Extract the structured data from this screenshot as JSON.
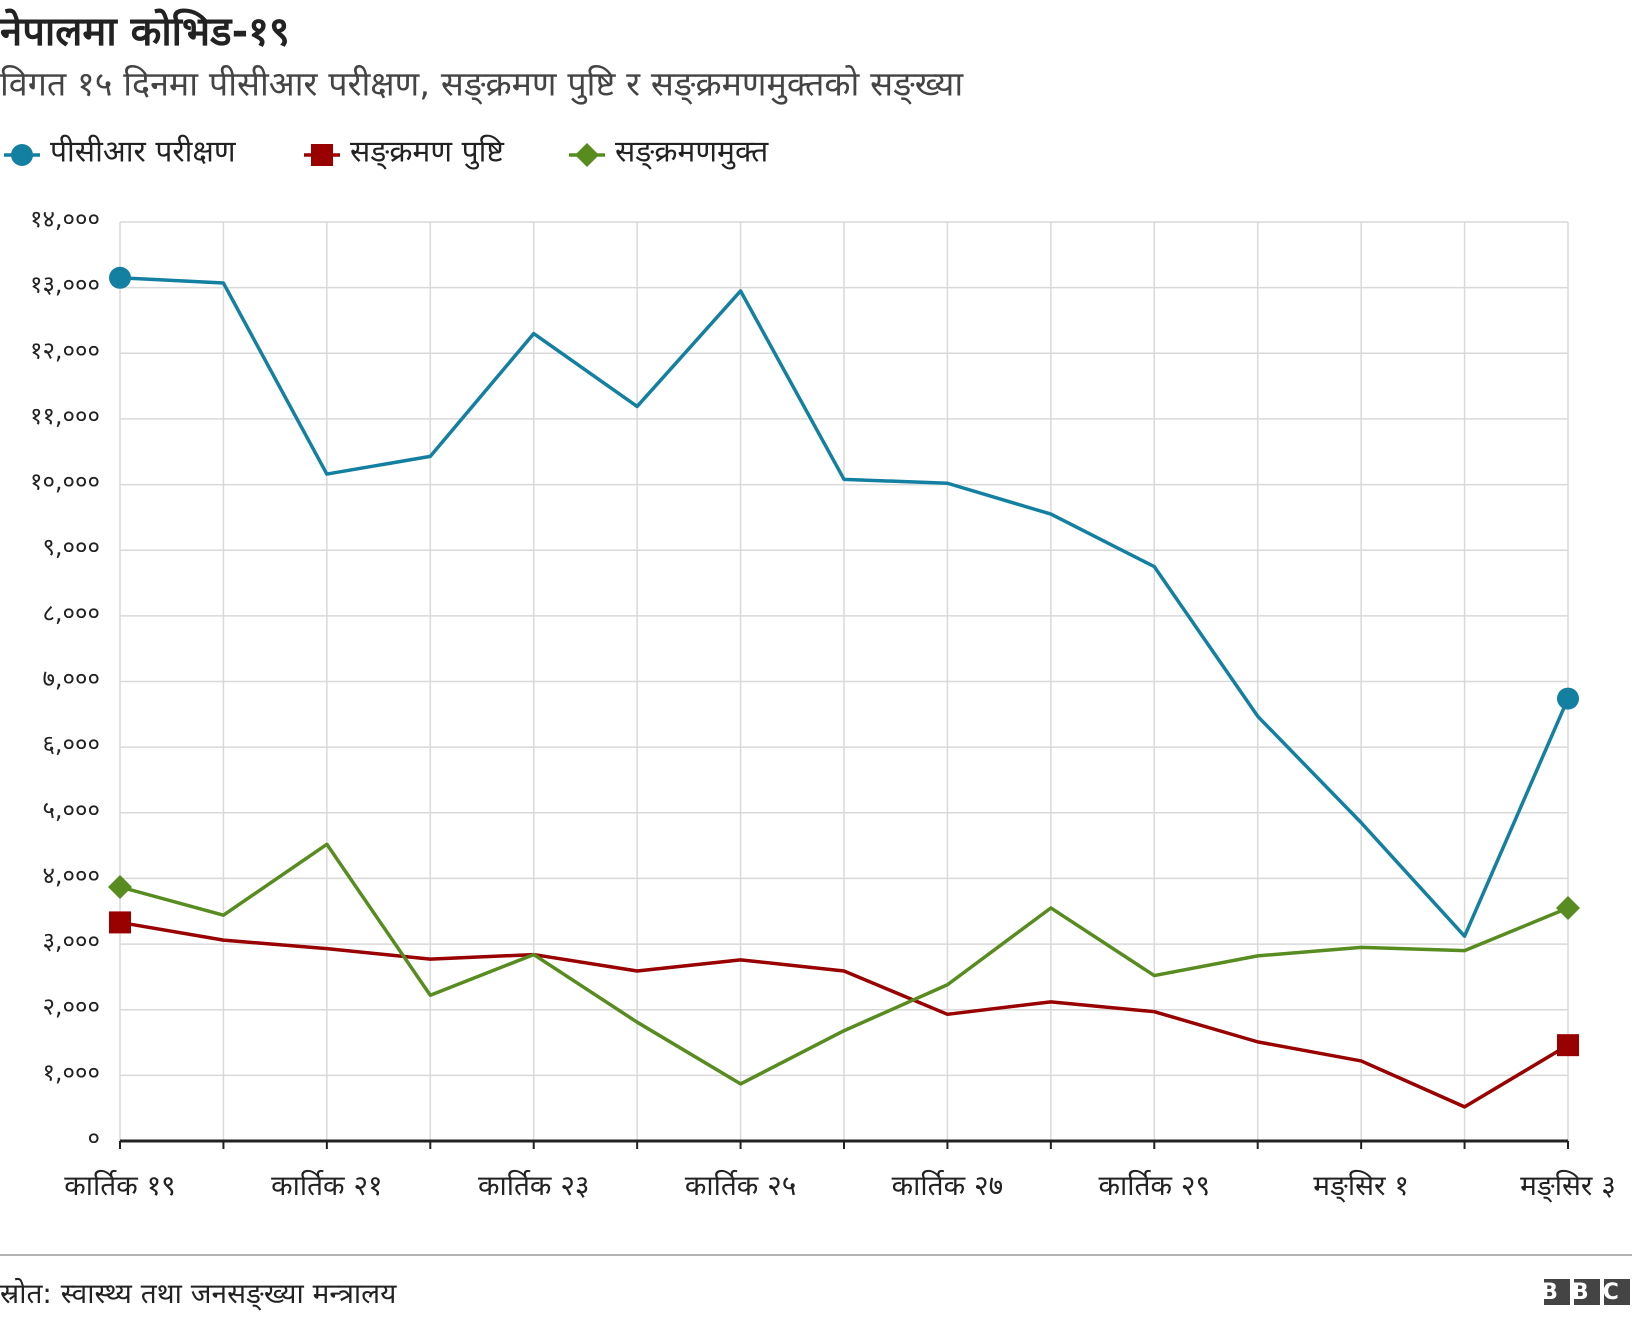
{
  "chart_data": {
    "type": "line",
    "title": "नेपालमा कोभिड-१९",
    "subtitle": "विगत १५ दिनमा पीसीआर परीक्षण, सङ्क्रमण पुष्टि र सङ्क्रमणमुक्तको सङ्ख्या",
    "categories": [
      "कार्तिक १९",
      null,
      "कार्तिक २१",
      null,
      "कार्तिक २३",
      null,
      "कार्तिक २५",
      null,
      "कार्तिक २७",
      null,
      "कार्तिक २९",
      null,
      "मङ्सिर १",
      null,
      "मङ्सिर ३"
    ],
    "series": [
      {
        "name": "पीसीआर परीक्षण",
        "color": "#1380a1",
        "marker": "circle",
        "values": [
          13150,
          13070,
          10160,
          10430,
          12300,
          11190,
          12950,
          10080,
          10020,
          9550,
          8750,
          6470,
          4850,
          3120,
          6740
        ]
      },
      {
        "name": "सङ्क्रमण पुष्टि",
        "color": "#990000",
        "marker": "square",
        "values": [
          3330,
          3060,
          2930,
          2770,
          2840,
          2590,
          2760,
          2590,
          1930,
          2120,
          1970,
          1510,
          1220,
          520,
          1460
        ]
      },
      {
        "name": "सङ्क्रमणमुक्त",
        "color": "#588c20",
        "marker": "diamond",
        "values": [
          3870,
          3440,
          4520,
          2220,
          2840,
          1810,
          870,
          1680,
          2380,
          3550,
          2520,
          2820,
          2950,
          2900,
          3550
        ]
      }
    ],
    "ylim": [
      0,
      14000
    ],
    "yticks": [
      {
        "value": 0,
        "label": "०"
      },
      {
        "value": 1000,
        "label": "१,०००"
      },
      {
        "value": 2000,
        "label": "२,०००"
      },
      {
        "value": 3000,
        "label": "३,०००"
      },
      {
        "value": 4000,
        "label": "४,०००"
      },
      {
        "value": 5000,
        "label": "५,०००"
      },
      {
        "value": 6000,
        "label": "६,०००"
      },
      {
        "value": 7000,
        "label": "७,०००"
      },
      {
        "value": 8000,
        "label": "८,०००"
      },
      {
        "value": 9000,
        "label": "९,०००"
      },
      {
        "value": 10000,
        "label": "१०,०००"
      },
      {
        "value": 11000,
        "label": "११,०००"
      },
      {
        "value": 12000,
        "label": "१२,०००"
      },
      {
        "value": 13000,
        "label": "१३,०००"
      },
      {
        "value": 14000,
        "label": "१४,०००"
      }
    ],
    "grid": true,
    "legend": "top-left",
    "source": "स्रोत: स्वास्थ्य तथा जनसङ्ख्या मन्त्रालय",
    "logo": "BBC"
  }
}
